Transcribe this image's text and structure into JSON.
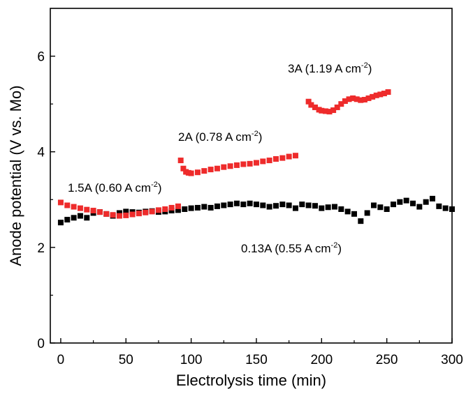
{
  "chart_data": {
    "type": "scatter",
    "title": "",
    "xlabel": "Electrolysis time (min)",
    "ylabel": "Anode potential (V vs. Mo)",
    "xlim": [
      -8,
      300
    ],
    "ylim": [
      0,
      7
    ],
    "xticks": [
      0,
      50,
      100,
      150,
      200,
      250,
      300
    ],
    "yticks": [
      0,
      2,
      4,
      6
    ],
    "grid": false,
    "legend": "none",
    "series": [
      {
        "color": "#000000",
        "marker": "square",
        "points": [
          [
            0,
            2.52
          ],
          [
            5,
            2.58
          ],
          [
            10,
            2.62
          ],
          [
            15,
            2.66
          ],
          [
            20,
            2.62
          ],
          [
            25,
            2.72
          ],
          [
            30,
            2.74
          ],
          [
            35,
            2.7
          ],
          [
            40,
            2.66
          ],
          [
            45,
            2.72
          ],
          [
            50,
            2.75
          ],
          [
            55,
            2.74
          ],
          [
            60,
            2.73
          ],
          [
            65,
            2.75
          ],
          [
            70,
            2.76
          ],
          [
            75,
            2.74
          ],
          [
            80,
            2.75
          ],
          [
            85,
            2.77
          ],
          [
            90,
            2.78
          ],
          [
            95,
            2.8
          ],
          [
            100,
            2.82
          ],
          [
            105,
            2.83
          ],
          [
            110,
            2.85
          ],
          [
            115,
            2.83
          ],
          [
            120,
            2.86
          ],
          [
            125,
            2.88
          ],
          [
            130,
            2.9
          ],
          [
            135,
            2.92
          ],
          [
            140,
            2.9
          ],
          [
            145,
            2.92
          ],
          [
            150,
            2.9
          ],
          [
            155,
            2.88
          ],
          [
            160,
            2.85
          ],
          [
            165,
            2.87
          ],
          [
            170,
            2.9
          ],
          [
            175,
            2.88
          ],
          [
            180,
            2.82
          ],
          [
            185,
            2.9
          ],
          [
            190,
            2.88
          ],
          [
            195,
            2.87
          ],
          [
            200,
            2.82
          ],
          [
            205,
            2.84
          ],
          [
            210,
            2.85
          ],
          [
            215,
            2.8
          ],
          [
            220,
            2.75
          ],
          [
            225,
            2.7
          ],
          [
            230,
            2.55
          ],
          [
            235,
            2.72
          ],
          [
            240,
            2.88
          ],
          [
            245,
            2.84
          ],
          [
            250,
            2.8
          ],
          [
            255,
            2.9
          ],
          [
            260,
            2.95
          ],
          [
            265,
            2.98
          ],
          [
            270,
            2.92
          ],
          [
            275,
            2.85
          ],
          [
            280,
            2.95
          ],
          [
            285,
            3.02
          ],
          [
            290,
            2.86
          ],
          [
            295,
            2.82
          ],
          [
            300,
            2.8
          ]
        ]
      },
      {
        "color": "#ee2b2b",
        "marker": "square",
        "points": [
          [
            0,
            2.94
          ],
          [
            5,
            2.88
          ],
          [
            10,
            2.85
          ],
          [
            15,
            2.82
          ],
          [
            20,
            2.79
          ],
          [
            25,
            2.77
          ],
          [
            30,
            2.74
          ],
          [
            35,
            2.7
          ],
          [
            40,
            2.68
          ],
          [
            45,
            2.66
          ],
          [
            50,
            2.67
          ],
          [
            55,
            2.69
          ],
          [
            60,
            2.71
          ],
          [
            65,
            2.73
          ],
          [
            70,
            2.75
          ],
          [
            75,
            2.78
          ],
          [
            80,
            2.8
          ],
          [
            85,
            2.83
          ],
          [
            90,
            2.86
          ]
        ]
      },
      {
        "color": "#ee2b2b",
        "marker": "square",
        "points": [
          [
            92,
            3.82
          ],
          [
            94,
            3.65
          ],
          [
            96,
            3.58
          ],
          [
            98,
            3.56
          ],
          [
            100,
            3.55
          ],
          [
            105,
            3.57
          ],
          [
            110,
            3.6
          ],
          [
            115,
            3.63
          ],
          [
            120,
            3.65
          ],
          [
            125,
            3.68
          ],
          [
            130,
            3.7
          ],
          [
            135,
            3.72
          ],
          [
            140,
            3.74
          ],
          [
            145,
            3.75
          ],
          [
            150,
            3.77
          ],
          [
            155,
            3.8
          ],
          [
            160,
            3.82
          ],
          [
            165,
            3.85
          ],
          [
            170,
            3.87
          ],
          [
            175,
            3.9
          ],
          [
            180,
            3.92
          ]
        ]
      },
      {
        "color": "#ee2b2b",
        "marker": "square",
        "points": [
          [
            190,
            5.05
          ],
          [
            192,
            4.98
          ],
          [
            195,
            4.93
          ],
          [
            198,
            4.88
          ],
          [
            200,
            4.86
          ],
          [
            203,
            4.85
          ],
          [
            206,
            4.84
          ],
          [
            209,
            4.87
          ],
          [
            212,
            4.93
          ],
          [
            215,
            5.0
          ],
          [
            218,
            5.06
          ],
          [
            221,
            5.1
          ],
          [
            224,
            5.12
          ],
          [
            227,
            5.1
          ],
          [
            230,
            5.08
          ],
          [
            233,
            5.09
          ],
          [
            236,
            5.12
          ],
          [
            239,
            5.15
          ],
          [
            242,
            5.18
          ],
          [
            245,
            5.2
          ],
          [
            248,
            5.22
          ],
          [
            251,
            5.25
          ]
        ]
      }
    ],
    "annotations": [
      {
        "base": "1.5A (0.60 A cm",
        "sup": "-2",
        "tail": ")"
      },
      {
        "base": "2A (0.78 A cm",
        "sup": "-2",
        "tail": ")"
      },
      {
        "base": "3A (1.19 A cm",
        "sup": "-2",
        "tail": ")"
      },
      {
        "base": "0.13A (0.55 A cm",
        "sup": "-2",
        "tail": ")"
      }
    ]
  }
}
